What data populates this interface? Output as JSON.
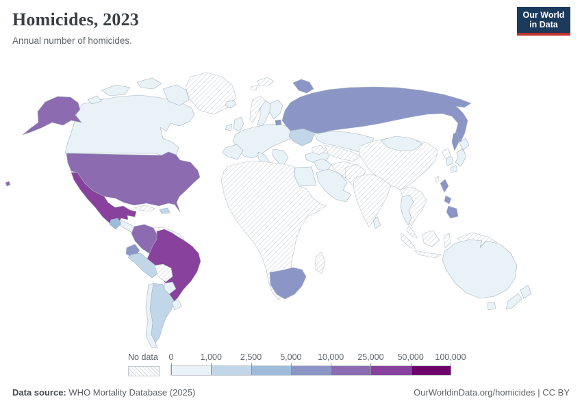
{
  "header": {
    "title": "Homicides, 2023",
    "subtitle": "Annual number of homicides.",
    "logo": {
      "line1": "Our World",
      "line2": "in Data",
      "bg_color": "#1b3a5c",
      "accent_color": "#c2332b"
    }
  },
  "legend": {
    "no_data_label": "No data",
    "tick_labels": [
      "0",
      "1,000",
      "2,500",
      "5,000",
      "10,000",
      "25,000",
      "50,000",
      "100,000"
    ],
    "bins": [
      {
        "range": "0–1,000",
        "color": "#e8f2f7"
      },
      {
        "range": "1,000–2,500",
        "color": "#c1d6e8"
      },
      {
        "range": "2,500–5,000",
        "color": "#9ebcda"
      },
      {
        "range": "5,000–10,000",
        "color": "#8c96c6"
      },
      {
        "range": "10,000–25,000",
        "color": "#8c6bb1"
      },
      {
        "range": "25,000–50,000",
        "color": "#88419d"
      },
      {
        "range": "50,000–100,000",
        "color": "#6e016b"
      }
    ],
    "no_data_pattern": {
      "line_color": "#cfd5da",
      "background": "#ffffff"
    }
  },
  "footer": {
    "source_label": "Data source:",
    "source_value": " WHO Mortality Database (2025)",
    "right_text": "OurWorldinData.org/homicides | CC BY"
  },
  "chart_data": {
    "type": "choropleth",
    "title": "Homicides, 2023",
    "subtitle": "Annual number of homicides.",
    "unit": "annual number of homicides",
    "bin_edges": [
      0,
      1000,
      2500,
      5000,
      10000,
      25000,
      50000,
      100000
    ],
    "legend_note": "bin index 0 = no data (hatched); 1–7 map to legend.bins ranges",
    "regions": {
      "canada": 1,
      "united-states": 5,
      "mexico": 6,
      "greenland": 0,
      "guatemala": 3,
      "central-america": 1,
      "cuba": 0,
      "dominican-republic": 2,
      "colombia": 5,
      "venezuela": 0,
      "guyana-region": 0,
      "ecuador": 4,
      "peru": 2,
      "brazil": 6,
      "bolivia": 0,
      "paraguay": 1,
      "chile": 1,
      "argentina": 2,
      "uruguay": 1,
      "iceland": 1,
      "norway": 0,
      "sweden": 1,
      "finland": 1,
      "united-kingdom": 1,
      "ireland": 1,
      "europe-mainland": 1,
      "iberia": 1,
      "italy": 1,
      "balkans": 1,
      "ukraine": 2,
      "lithuania": 4,
      "russia": 4,
      "svalbard": 0,
      "turkey": 1,
      "kazakhstan": 1,
      "central-asia": 0,
      "caucasus": 0,
      "iran": 0,
      "iraq-syria": 1,
      "saudi-arabia": 1,
      "egypt": 1,
      "africa": 0,
      "south-africa": 4,
      "madagascar": 0,
      "china": 0,
      "mongolia": 1,
      "pakistan-afghanistan": 0,
      "india": 0,
      "sri-lanka": 1,
      "southeast-asia": 0,
      "thailand": 1,
      "malay-peninsula": 0,
      "indonesia": 0,
      "new-guinea": 0,
      "philippines": 4,
      "japan": 1,
      "north-korea": 0,
      "south-korea": 1,
      "taiwan": 0,
      "australia": 1,
      "new-zealand": 1
    }
  }
}
